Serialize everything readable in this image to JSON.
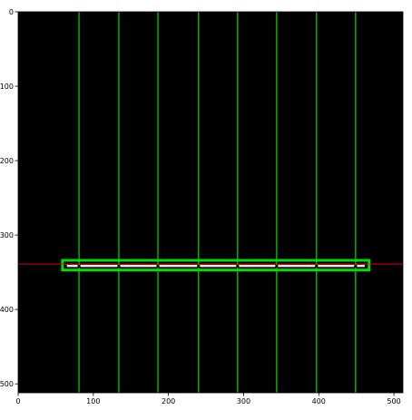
{
  "chart_data": {
    "type": "image",
    "title": "",
    "xlabel": "",
    "ylabel": "",
    "image_size": [
      512,
      512
    ],
    "xlim": [
      0,
      512
    ],
    "ylim": [
      512,
      0
    ],
    "x_ticks": [
      0,
      100,
      200,
      300,
      400,
      500
    ],
    "y_ticks": [
      0,
      100,
      200,
      300,
      400,
      500
    ],
    "background_color": "#000000",
    "vertical_lines": {
      "color": "#00cc00",
      "x": [
        81,
        134,
        186,
        240,
        292,
        344,
        397,
        449
      ]
    },
    "horizontal_line": {
      "color": "#cc0000",
      "y": 339
    },
    "box": {
      "color": "#00dd00",
      "x0": 59,
      "x1": 467,
      "y0": 334,
      "y1": 347
    },
    "inner_bar": {
      "color": "#e8e8e8",
      "x0": 63,
      "x1": 463,
      "y0": 340,
      "y1": 343
    },
    "markers": {
      "color": "#000000",
      "x": [
        63,
        81,
        134,
        186,
        240,
        292,
        344,
        397,
        449,
        463
      ],
      "y": 342
    }
  }
}
